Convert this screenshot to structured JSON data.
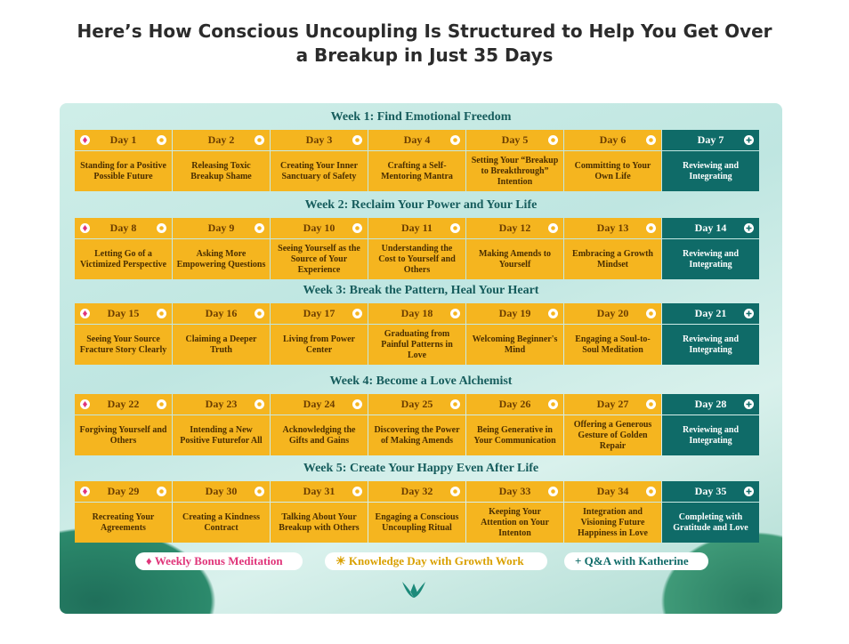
{
  "header": {
    "title": "Here’s How Conscious Uncoupling Is Structured to Help You Get Over a Breakup in Just 35 Days"
  },
  "weeks": [
    {
      "title": "Week 1: Find Emotional Freedom",
      "days": [
        {
          "day": "Day 1",
          "topic": "Standing for a Positive Possible Future"
        },
        {
          "day": "Day 2",
          "topic": "Releasing Toxic Breakup Shame"
        },
        {
          "day": "Day 3",
          "topic": "Creating Your Inner Sanctuary of Safety"
        },
        {
          "day": "Day 4",
          "topic": "Crafting a Self-Mentoring Mantra"
        },
        {
          "day": "Day 5",
          "topic": "Setting Your “Breakup to Breakthrough” Intention"
        },
        {
          "day": "Day 6",
          "topic": "Committing to Your Own Life"
        },
        {
          "day": "Day 7",
          "topic": "Reviewing and Integrating"
        }
      ]
    },
    {
      "title": "Week 2: Reclaim Your Power and Your Life",
      "days": [
        {
          "day": "Day 8",
          "topic": "Letting Go of a Victimized Perspective"
        },
        {
          "day": "Day 9",
          "topic": "Asking More Empowering Questions"
        },
        {
          "day": "Day 10",
          "topic": "Seeing Yourself as the Source of Your Experience"
        },
        {
          "day": "Day 11",
          "topic": "Understanding the Cost to Yourself and Others"
        },
        {
          "day": "Day 12",
          "topic": "Making Amends to Yourself"
        },
        {
          "day": "Day 13",
          "topic": "Embracing a Growth Mindset"
        },
        {
          "day": "Day 14",
          "topic": "Reviewing and Integrating"
        }
      ]
    },
    {
      "title": "Week 3: Break the Pattern, Heal Your Heart",
      "days": [
        {
          "day": "Day 15",
          "topic": "Seeing Your Source Fracture Story Clearly"
        },
        {
          "day": "Day 16",
          "topic": "Claiming a Deeper Truth"
        },
        {
          "day": "Day 17",
          "topic": "Living from Power Center"
        },
        {
          "day": "Day 18",
          "topic": "Graduating from Painful Patterns in Love"
        },
        {
          "day": "Day 19",
          "topic": "Welcoming Beginner's Mind"
        },
        {
          "day": "Day 20",
          "topic": "Engaging a Soul-to-Soul Meditation"
        },
        {
          "day": "Day 21",
          "topic": "Reviewing and Integrating"
        }
      ]
    },
    {
      "title": "Week 4: Become a Love Alchemist",
      "days": [
        {
          "day": "Day 22",
          "topic": "Forgiving Yourself and Others"
        },
        {
          "day": "Day 23",
          "topic": "Intending a New Positive Futurefor All"
        },
        {
          "day": "Day 24",
          "topic": "Acknowledging the Gifts and Gains"
        },
        {
          "day": "Day 25",
          "topic": "Discovering the Power of Making Amends"
        },
        {
          "day": "Day 26",
          "topic": "Being Generative in Your Communication"
        },
        {
          "day": "Day 27",
          "topic": "Offering a Generous Gesture of Golden Repair"
        },
        {
          "day": "Day 28",
          "topic": "Reviewing and Integrating"
        }
      ]
    },
    {
      "title": "Week 5: Create Your Happy Even After Life",
      "days": [
        {
          "day": "Day 29",
          "topic": "Recreating Your Agreements"
        },
        {
          "day": "Day 30",
          "topic": "Creating a Kindness Contract"
        },
        {
          "day": "Day 31",
          "topic": "Talking About Your Breakup with Others"
        },
        {
          "day": "Day 32",
          "topic": "Engaging a Conscious Uncoupling Ritual"
        },
        {
          "day": "Day 33",
          "topic": "Keeping Your Attention on Your Intenton"
        },
        {
          "day": "Day 34",
          "topic": "Integration and Visioning Future Happiness in Love"
        },
        {
          "day": "Day 35",
          "topic": "Completing with Gratitude and Love"
        }
      ]
    }
  ],
  "legend": [
    "Weekly Bonus Meditation",
    "Knowledge Day with Growth Work",
    "Q&A with Katherine"
  ]
}
